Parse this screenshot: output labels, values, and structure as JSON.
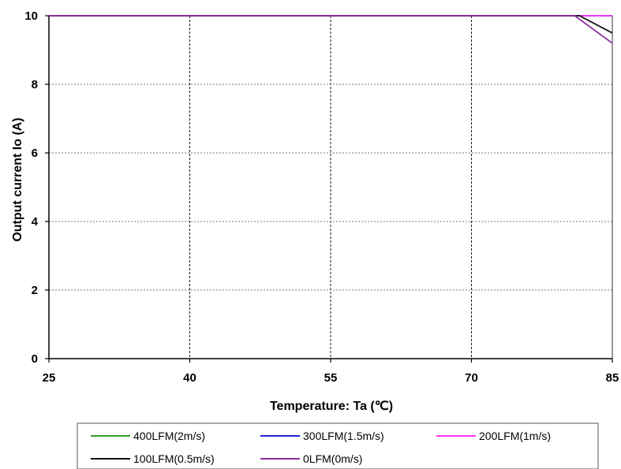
{
  "chart_data": {
    "type": "line",
    "title": "",
    "xlabel": "Temperature: Ta (℃)",
    "ylabel": "Output current Io (A)",
    "xlim": [
      25,
      85
    ],
    "ylim": [
      0,
      10
    ],
    "x_ticks": [
      "25",
      "40",
      "55",
      "70",
      "85"
    ],
    "y_ticks": [
      "0",
      "2",
      "4",
      "6",
      "8",
      "10"
    ],
    "grid": true,
    "legend_position": "bottom",
    "series": [
      {
        "name": "400LFM(2m/s)",
        "color": "#2e9e2e",
        "points": [
          [
            25,
            10
          ],
          [
            85,
            10
          ]
        ]
      },
      {
        "name": "300LFM(1.5m/s)",
        "color": "#2323d8",
        "points": [
          [
            25,
            10
          ],
          [
            85,
            10
          ]
        ]
      },
      {
        "name": "200LFM(1m/s)",
        "color": "#ff33ff",
        "points": [
          [
            25,
            10
          ],
          [
            85,
            10
          ]
        ]
      },
      {
        "name": "100LFM(0.5m/s)",
        "color": "#111111",
        "points": [
          [
            25,
            10
          ],
          [
            81.5,
            10
          ],
          [
            85,
            9.5
          ]
        ]
      },
      {
        "name": "0LFM(0m/s)",
        "color": "#8b2e9b",
        "points": [
          [
            25,
            10
          ],
          [
            81,
            10
          ],
          [
            85,
            9.2
          ]
        ]
      }
    ]
  }
}
